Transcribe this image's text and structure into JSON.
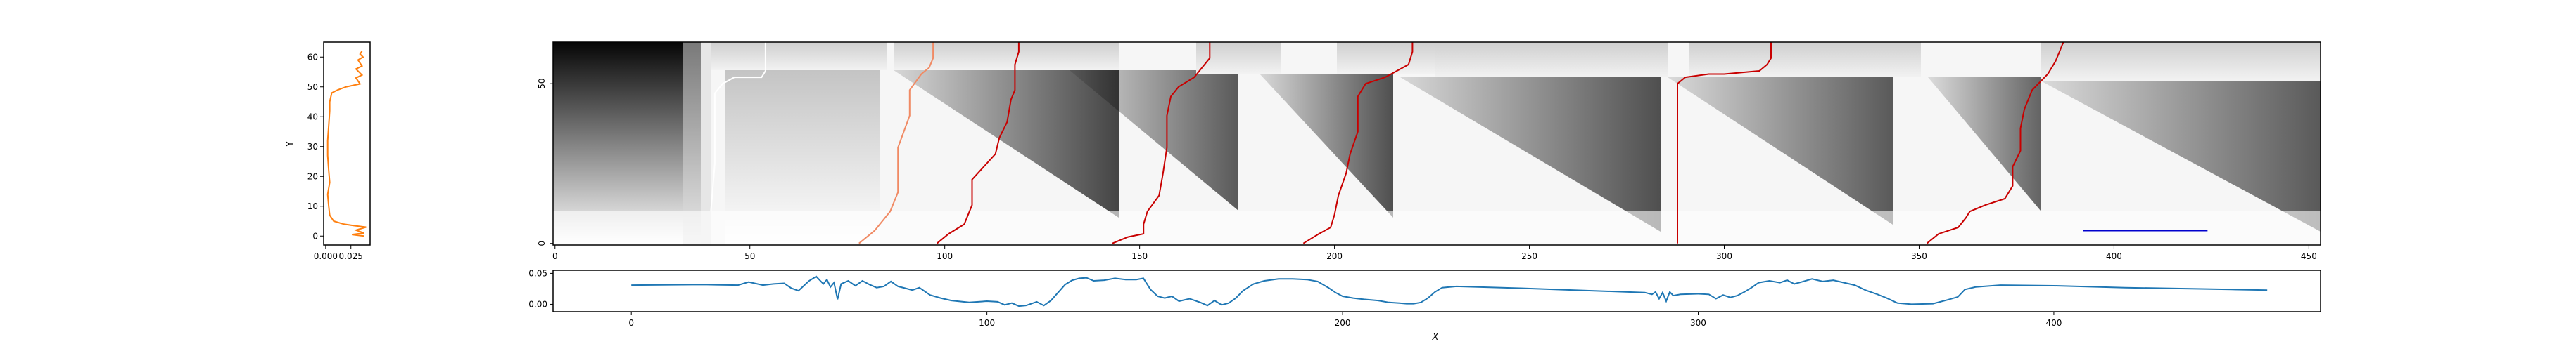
{
  "chart_data": [
    {
      "id": "y-profile",
      "type": "line",
      "orientation": "vertical",
      "xlabel": "",
      "ylabel": "Y",
      "xlim": [
        -0.002,
        0.044
      ],
      "ylim": [
        -3,
        65
      ],
      "xticks": [
        0.0,
        0.025
      ],
      "xtick_labels": [
        "0.000",
        "0.025"
      ],
      "yticks": [
        0,
        10,
        20,
        30,
        40,
        50,
        60
      ],
      "ytick_labels": [
        "0",
        "10",
        "20",
        "30",
        "40",
        "50",
        "60"
      ],
      "series": [
        {
          "color": "#ff7f0e",
          "points": [
            [
              0.038,
              0
            ],
            [
              0.026,
              0.5
            ],
            [
              0.038,
              1
            ],
            [
              0.03,
              2
            ],
            [
              0.04,
              3
            ],
            [
              0.028,
              3.5
            ],
            [
              0.018,
              4
            ],
            [
              0.008,
              5
            ],
            [
              0.004,
              7
            ],
            [
              0.003,
              10
            ],
            [
              0.002,
              14
            ],
            [
              0.004,
              18
            ],
            [
              0.003,
              22
            ],
            [
              0.002,
              27
            ],
            [
              0.002,
              32
            ],
            [
              0.003,
              37
            ],
            [
              0.004,
              42
            ],
            [
              0.004,
              45
            ],
            [
              0.006,
              48
            ],
            [
              0.012,
              49
            ],
            [
              0.02,
              50
            ],
            [
              0.034,
              51
            ],
            [
              0.03,
              53
            ],
            [
              0.036,
              54
            ],
            [
              0.03,
              56
            ],
            [
              0.036,
              57
            ],
            [
              0.032,
              59
            ],
            [
              0.037,
              60
            ],
            [
              0.034,
              61
            ],
            [
              0.036,
              62
            ]
          ]
        }
      ]
    },
    {
      "id": "main-heatmap",
      "type": "heatmap",
      "xlim": [
        -0.5,
        453
      ],
      "ylim": [
        -0.5,
        63
      ],
      "xticks": [
        0,
        50,
        100,
        150,
        200,
        250,
        300,
        350,
        400,
        450
      ],
      "xtick_labels": [
        "0",
        "50",
        "100",
        "150",
        "200",
        "250",
        "300",
        "350",
        "400",
        "450"
      ],
      "yticks": [
        0,
        50
      ],
      "ytick_labels": [
        "0",
        "50"
      ],
      "colormap": "gray_r",
      "paths": [
        {
          "color": "#ffffff",
          "points": [
            [
              40,
              10
            ],
            [
              41,
              25
            ],
            [
              41,
              47
            ],
            [
              43,
              50
            ],
            [
              46,
              52
            ],
            [
              53,
              52
            ],
            [
              54,
              54
            ],
            [
              54,
              63
            ]
          ]
        },
        {
          "color": "#f08a64",
          "points": [
            [
              78,
              0
            ],
            [
              82,
              4
            ],
            [
              86,
              10
            ],
            [
              88,
              16
            ],
            [
              88,
              30
            ],
            [
              91,
              40
            ],
            [
              91,
              48
            ],
            [
              94,
              53
            ],
            [
              96,
              55
            ],
            [
              97,
              58
            ],
            [
              97,
              63
            ]
          ]
        },
        {
          "color": "#c80000",
          "points": [
            [
              98,
              0
            ],
            [
              101,
              3
            ],
            [
              105,
              6
            ],
            [
              107,
              12
            ],
            [
              107,
              20
            ],
            [
              110,
              24
            ],
            [
              113,
              28
            ],
            [
              114,
              33
            ],
            [
              116,
              38
            ],
            [
              117,
              45
            ],
            [
              118,
              48
            ],
            [
              118,
              56
            ],
            [
              119,
              60
            ],
            [
              119,
              63
            ]
          ]
        },
        {
          "color": "#c80000",
          "points": [
            [
              143,
              0
            ],
            [
              147,
              2
            ],
            [
              151,
              3
            ],
            [
              151,
              6
            ],
            [
              152,
              10
            ],
            [
              155,
              15
            ],
            [
              156,
              22
            ],
            [
              157,
              30
            ],
            [
              157,
              40
            ],
            [
              158,
              46
            ],
            [
              160,
              49
            ],
            [
              164,
              52
            ],
            [
              166,
              55
            ],
            [
              168,
              58
            ],
            [
              168,
              63
            ]
          ]
        },
        {
          "color": "#c80000",
          "points": [
            [
              192,
              0
            ],
            [
              196,
              3
            ],
            [
              199,
              5
            ],
            [
              200,
              9
            ],
            [
              201,
              15
            ],
            [
              203,
              22
            ],
            [
              204,
              28
            ],
            [
              206,
              35
            ],
            [
              206,
              42
            ],
            [
              206,
              46
            ],
            [
              208,
              50
            ],
            [
              213,
              52
            ],
            [
              219,
              56
            ],
            [
              220,
              60
            ],
            [
              220,
              63
            ]
          ]
        },
        {
          "color": "#c80000",
          "points": [
            [
              288,
              0
            ],
            [
              288,
              12
            ],
            [
              288,
              30
            ],
            [
              288,
              46
            ],
            [
              288,
              50
            ],
            [
              290,
              52
            ],
            [
              296,
              53
            ],
            [
              300,
              53
            ],
            [
              309,
              54
            ],
            [
              311,
              56
            ],
            [
              312,
              58
            ],
            [
              312,
              63
            ]
          ]
        },
        {
          "color": "#c80000",
          "points": [
            [
              352,
              0
            ],
            [
              355,
              3
            ],
            [
              360,
              5
            ],
            [
              362,
              8
            ],
            [
              363,
              10
            ],
            [
              367,
              12
            ],
            [
              372,
              14
            ],
            [
              374,
              18
            ],
            [
              374,
              24
            ],
            [
              376,
              29
            ],
            [
              376,
              36
            ],
            [
              377,
              42
            ],
            [
              379,
              48
            ],
            [
              383,
              53
            ],
            [
              385,
              57
            ],
            [
              386,
              60
            ],
            [
              387,
              63
            ]
          ]
        }
      ],
      "scale_bar": {
        "color": "#0000cd",
        "x": [
          392,
          424
        ],
        "y": 4
      }
    },
    {
      "id": "x-profile",
      "type": "line",
      "xlabel": "X",
      "ylabel": "",
      "xlim": [
        -22,
        475
      ],
      "ylim": [
        -0.012,
        0.055
      ],
      "xticks": [
        0,
        100,
        200,
        300,
        400
      ],
      "xtick_labels": [
        "0",
        "100",
        "200",
        "300",
        "400"
      ],
      "yticks": [
        0.0,
        0.05
      ],
      "ytick_labels": [
        "0.00",
        "0.05"
      ],
      "series": [
        {
          "color": "#1f77b4",
          "points": [
            [
              0,
              0.031
            ],
            [
              20,
              0.032
            ],
            [
              30,
              0.031
            ],
            [
              33,
              0.036
            ],
            [
              37,
              0.031
            ],
            [
              40,
              0.033
            ],
            [
              43,
              0.034
            ],
            [
              45,
              0.026
            ],
            [
              47,
              0.022
            ],
            [
              50,
              0.038
            ],
            [
              52,
              0.045
            ],
            [
              54,
              0.033
            ],
            [
              55,
              0.04
            ],
            [
              56,
              0.028
            ],
            [
              57,
              0.035
            ],
            [
              58,
              0.008
            ],
            [
              59,
              0.033
            ],
            [
              61,
              0.038
            ],
            [
              63,
              0.03
            ],
            [
              65,
              0.038
            ],
            [
              67,
              0.032
            ],
            [
              69,
              0.027
            ],
            [
              71,
              0.029
            ],
            [
              73,
              0.037
            ],
            [
              75,
              0.029
            ],
            [
              77,
              0.026
            ],
            [
              79,
              0.023
            ],
            [
              81,
              0.027
            ],
            [
              84,
              0.015
            ],
            [
              87,
              0.01
            ],
            [
              90,
              0.006
            ],
            [
              95,
              0.003
            ],
            [
              100,
              0.005
            ],
            [
              103,
              0.004
            ],
            [
              105,
              -0.001
            ],
            [
              107,
              0.002
            ],
            [
              109,
              -0.003
            ],
            [
              111,
              -0.002
            ],
            [
              114,
              0.004
            ],
            [
              116,
              -0.002
            ],
            [
              118,
              0.006
            ],
            [
              120,
              0.019
            ],
            [
              122,
              0.032
            ],
            [
              124,
              0.039
            ],
            [
              126,
              0.042
            ],
            [
              128,
              0.043
            ],
            [
              130,
              0.038
            ],
            [
              133,
              0.039
            ],
            [
              136,
              0.042
            ],
            [
              139,
              0.04
            ],
            [
              142,
              0.04
            ],
            [
              144,
              0.042
            ],
            [
              146,
              0.024
            ],
            [
              148,
              0.013
            ],
            [
              150,
              0.01
            ],
            [
              152,
              0.013
            ],
            [
              154,
              0.005
            ],
            [
              157,
              0.009
            ],
            [
              160,
              0.003
            ],
            [
              162,
              -0.002
            ],
            [
              164,
              0.006
            ],
            [
              166,
              -0.001
            ],
            [
              168,
              0.002
            ],
            [
              170,
              0.01
            ],
            [
              172,
              0.022
            ],
            [
              175,
              0.033
            ],
            [
              178,
              0.038
            ],
            [
              182,
              0.041
            ],
            [
              186,
              0.041
            ],
            [
              190,
              0.04
            ],
            [
              193,
              0.037
            ],
            [
              196,
              0.027
            ],
            [
              198,
              0.019
            ],
            [
              200,
              0.013
            ],
            [
              203,
              0.01
            ],
            [
              206,
              0.008
            ],
            [
              210,
              0.006
            ],
            [
              213,
              0.003
            ],
            [
              216,
              0.002
            ],
            [
              218,
              0.001
            ],
            [
              220,
              0.001
            ],
            [
              222,
              0.003
            ],
            [
              224,
              0.01
            ],
            [
              226,
              0.02
            ],
            [
              228,
              0.027
            ],
            [
              232,
              0.029
            ],
            [
              250,
              0.026
            ],
            [
              270,
              0.022
            ],
            [
              285,
              0.019
            ],
            [
              287,
              0.016
            ],
            [
              288,
              0.02
            ],
            [
              289,
              0.009
            ],
            [
              290,
              0.019
            ],
            [
              291,
              0.005
            ],
            [
              292,
              0.02
            ],
            [
              293,
              0.014
            ],
            [
              295,
              0.016
            ],
            [
              300,
              0.017
            ],
            [
              303,
              0.016
            ],
            [
              305,
              0.009
            ],
            [
              307,
              0.015
            ],
            [
              309,
              0.011
            ],
            [
              311,
              0.014
            ],
            [
              313,
              0.02
            ],
            [
              315,
              0.027
            ],
            [
              317,
              0.035
            ],
            [
              320,
              0.038
            ],
            [
              323,
              0.035
            ],
            [
              325,
              0.039
            ],
            [
              327,
              0.033
            ],
            [
              329,
              0.036
            ],
            [
              332,
              0.041
            ],
            [
              335,
              0.037
            ],
            [
              338,
              0.039
            ],
            [
              341,
              0.035
            ],
            [
              344,
              0.031
            ],
            [
              347,
              0.023
            ],
            [
              350,
              0.017
            ],
            [
              353,
              0.01
            ],
            [
              356,
              0.002
            ],
            [
              360,
              0.0
            ],
            [
              366,
              0.001
            ],
            [
              370,
              0.007
            ],
            [
              373,
              0.012
            ],
            [
              375,
              0.024
            ],
            [
              378,
              0.028
            ],
            [
              385,
              0.031
            ],
            [
              400,
              0.03
            ],
            [
              420,
              0.027
            ],
            [
              440,
              0.025
            ],
            [
              450,
              0.024
            ],
            [
              460,
              0.023
            ]
          ]
        }
      ]
    }
  ]
}
